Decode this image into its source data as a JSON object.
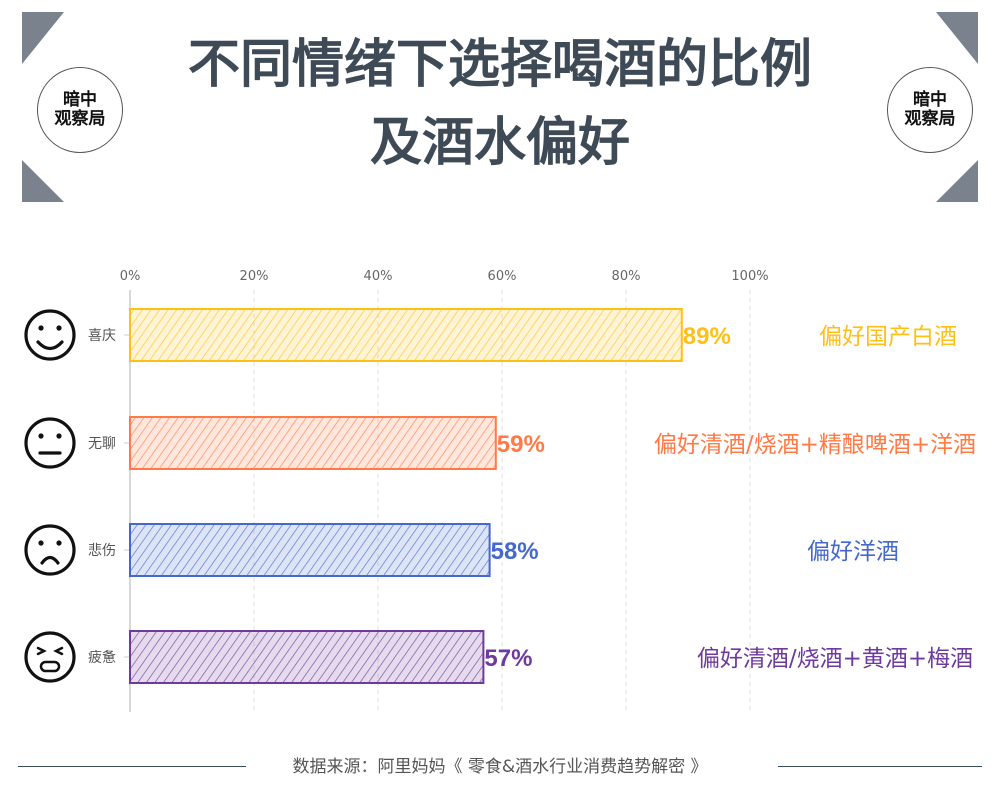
{
  "title_lines": [
    "不同情绪下选择喝酒的比例",
    "及酒水偏好"
  ],
  "logo": {
    "line1": "暗中",
    "line2": "观察局"
  },
  "source": "数据来源：阿里妈妈《 零食&酒水行业消费趋势解密 》",
  "chart_data": {
    "type": "bar",
    "orientation": "horizontal",
    "style": "hand-drawn hatched",
    "xlim": [
      0,
      100
    ],
    "xticks": [
      "0%",
      "20%",
      "40%",
      "60%",
      "80%",
      "100%"
    ],
    "grid": "vertical dashed",
    "categories": [
      "喜庆",
      "无聊",
      "悲伤",
      "疲惫"
    ],
    "icons": [
      "smile-face-icon",
      "neutral-face-icon",
      "sad-face-icon",
      "tired-face-icon"
    ],
    "values": [
      89,
      59,
      58,
      57
    ],
    "data_labels": [
      "89%",
      "59%",
      "58%",
      "57%"
    ],
    "preferences": [
      "偏好国产白酒",
      "偏好清酒/烧酒+精酿啤酒+洋酒",
      "偏好洋酒",
      "偏好清酒/烧酒+黄酒+梅酒"
    ],
    "colors": [
      "#FFC015",
      "#FF7A45",
      "#4468CC",
      "#6E3A9E"
    ]
  }
}
